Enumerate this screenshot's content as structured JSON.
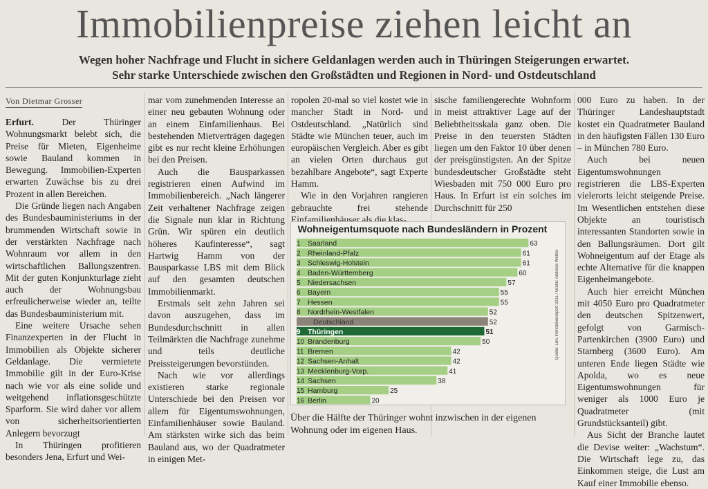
{
  "headline": "Immobilienpreise ziehen leicht an",
  "subhead": [
    "Wegen hoher Nachfrage und Flucht in sichere Geldanlagen werden auch in Thüringen Steigerungen erwartet.",
    "Sehr starke Unterschiede zwischen den Großstädten und Regionen in Nord- und Ostdeutschland"
  ],
  "byline": "Von Dietmar Grosser",
  "columns": {
    "c1": [
      "<b>Erfurt.</b> Der Thüringer Wohnungsmarkt belebt sich, die Preise für Mieten, Eigenheime sowie Bauland kommen in Bewegung. Immobilien-Experten erwarten Zuwächse bis zu drei Prozent in allen Bereichen.",
      "Die Gründe liegen nach Angaben des Bundesbauministeriums in der brummenden Wirtschaft sowie in der verstärkten Nachfrage nach Wohnraum vor allem in den wirtschaftlichen Ballungszentren. Mit der guten Konjunkturlage zieht auch der Wohnungsbau erfreulicherweise wieder an, teilte das Bundesbauministerium mit.",
      "Eine weitere Ursache sehen Finanzexperten in der Flucht in Immobilien als Objekte sicherer Geldanlage. Die vermietete Immobilie gilt in der Euro-Krise nach wie vor als eine solide und weitgehend inflationsgeschützte Sparform. Sie wird daher vor allem von sicherheitsorientierten Anlegern bevorzugt",
      "In Thüringen profitieren besonders Jena, Erfurt und Wei-"
    ],
    "c2": [
      "mar vom zunehmenden Interesse an einer neu gebauten Wohnung oder an einem Einfamilienhaus. Bei bestehenden Mietverträgen dagegen gibt es nur recht kleine Erhöhungen bei den Preisen.",
      "Auch die Bausparkassen registrieren einen Aufwind im Immobilienbereich. „Nach längerer Zeit verhaltener Nachfrage zeigen die Signale nun klar in Richtung Grün. Wir spüren ein deutlich höheres Kaufinteresse“, sagt Hartwig Hamm von der Bausparkasse LBS mit dem Blick auf den gesamten deutschen Immobilienmarkt.",
      "Erstmals seit zehn Jahren sei davon auszugehen, dass im Bundesdurchschnitt in allen Teilmärkten die Nachfrage zunehme und teils deutliche Preissteigerungen bevorstünden.",
      "Nach wie vor allerdings existieren starke regionale Unterschiede bei den Preisen vor allem für Eigentumswohnungen, Einfamilienhäuser sowie Bauland. Am stärksten wirke sich das beim Bauland aus, wo der Quadratmeter in einigen Met-"
    ],
    "c3": [
      "ropolen 20-mal so viel kostet wie in mancher Stadt in Nord- und Ostdeutschland. „Natürlich sind Städte wie München teuer, auch im europäischen Vergleich. Aber es gibt an vielen Orten durchaus gut bezahlbare Angebote“, sagt Experte Hamm.",
      "Wie in den Vorjahren rangieren gebrauchte frei stehende Einfamilienhäuser als die klas-"
    ],
    "c4": [
      "sische familiengerechte Wohnform in meist attraktiver Lage auf der Beliebtheitsskala ganz oben. Die Preise in den teuersten Städten liegen um den Faktor 10 über denen der preisgünstigsten. An der Spitze bundesdeutscher Großstädte steht Wiesbaden mit 750 000 Euro pro Haus. In Erfurt ist ein solches im Durchschnitt für 250"
    ],
    "c5": [
      "000 Euro zu haben. In der Thüringer Landeshauptstadt kostet ein Quadratmeter Bauland in den häufigsten Fällen 130 Euro – in München 780 Euro.",
      "Auch bei neuen Eigentumswohnungen registrieren die LBS-Experten vielerorts leicht steigende Preise. Im Wesentlichen entstehen diese Objekte an touristisch interessanten Standorten sowie in den Ballungsräumen. Dort gilt Wohneigentum auf der Etage als echte Alternative für die knappen Eigenheimangebote.",
      "Auch hier erreicht München mit 4050 Euro pro Quadratmeter den deutschen Spitzenwert, gefolgt von Garmisch-Partenkirchen (3900 Euro) und Starnberg (3600 Euro). Am unteren Ende liegen Städte wie Apolda, wo es neue Eigentumswohnungen für weniger als 1000 Euro je Quadratmeter (mit Grundstücksanteil) gibt.",
      "Aus Sicht der Branche lautet die Devise weiter: „Wachstum“. Die Wirtschaft lege zu, das Einkommen steige, die Lust am Kauf einer Immobilie ebenso."
    ]
  },
  "chart_data": {
    "type": "bar",
    "title": "Wohneigentumsquote nach Bundesländern in Prozent",
    "credit": "Quelle: LBS Immobilienreport 2011 / Grafik: Andreas Wetzel",
    "ranks": [
      "1",
      "2",
      "3",
      "4",
      "5",
      "6",
      "7",
      "8",
      "",
      "9",
      "10",
      "11",
      "12",
      "13",
      "14",
      "15",
      "16"
    ],
    "categories": [
      "Saarland",
      "Rheinland-Pfalz",
      "Schleswig-Holstein",
      "Baden-Württemberg",
      "Niedersachsen",
      "Bayern",
      "Hessen",
      "Nordrhein-Westfalen",
      "Deutschland",
      "Thüringen",
      "Brandenburg",
      "Bremen",
      "Sachsen-Anhalt",
      "Mecklenburg-Vorp.",
      "Sachsen",
      "Hamburg",
      "Berlin"
    ],
    "values": [
      63,
      61,
      61,
      60,
      57,
      55,
      55,
      52,
      52,
      51,
      50,
      42,
      42,
      41,
      38,
      25,
      20
    ],
    "xlim": [
      0,
      65
    ],
    "colors": {
      "bar": "#a6cf86",
      "germany": "#8c8378",
      "thueringen": "#1f6a34",
      "text": "#222222"
    }
  },
  "caption": "Über die Hälfte der Thüringer wohnt inzwischen in der eigenen Wohnung oder im eigenen Haus."
}
